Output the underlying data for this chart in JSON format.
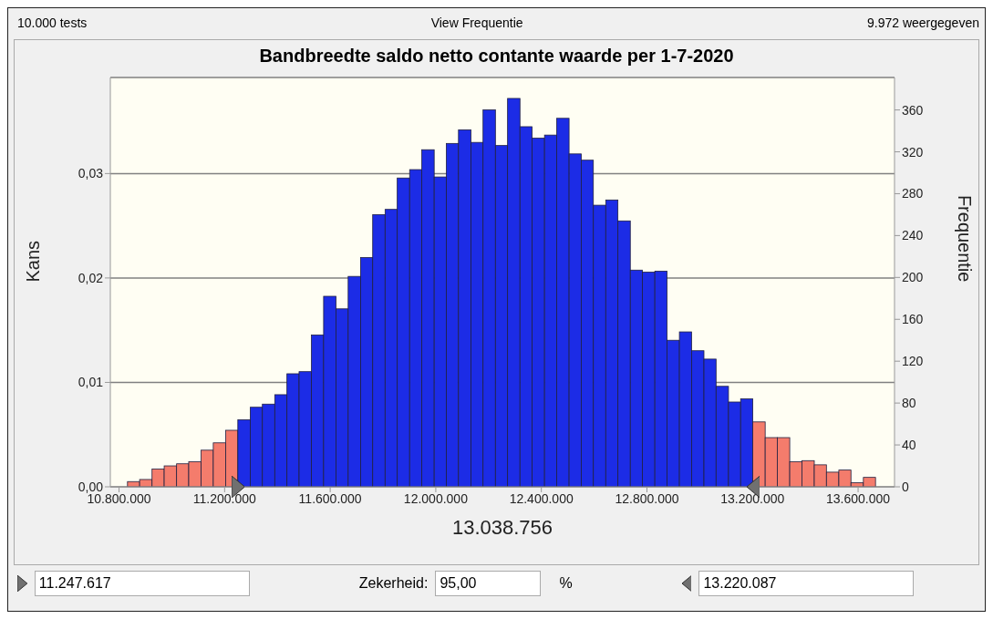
{
  "chart_data": {
    "type": "histogram",
    "title": "Bandbreedte saldo netto contante waarde per 1-7-2020",
    "subtitle": "View Frequentie",
    "xlabel": "13.038.756",
    "ylabel": "Kans",
    "y2label": "Frequentie",
    "annotations": [
      "10.000 tests",
      "9.972 weergegeven",
      "11.247.617",
      "Zekerheid:",
      "95,00",
      "%",
      "13.220.087"
    ],
    "bins": [
      10832000,
      10878000,
      10925000,
      10971000,
      11018000,
      11064000,
      11111000,
      11157000,
      11204000,
      11250000,
      11297000,
      11343000,
      11390000,
      11436000,
      11482000,
      11529000,
      11575000,
      11622000,
      11668000,
      11715000,
      11761000,
      11808000,
      11854000,
      11901000,
      11947000,
      11994000,
      12040000,
      12086000,
      12133000,
      12179000,
      12226000,
      12272000,
      12319000,
      12365000,
      12412000,
      12458000,
      12505000,
      12551000,
      12597000,
      12644000,
      12690000,
      12737000,
      12783000,
      12830000,
      12876000,
      12923000,
      12969000,
      13016000,
      13062000,
      13109000,
      13155000,
      13201000,
      13248000,
      13294000,
      13341000,
      13387000,
      13434000,
      13480000,
      13527000,
      13573000,
      13620000,
      13666000
    ],
    "series": [
      {
        "axis": "y2",
        "values": [
          5,
          7,
          17,
          20,
          22,
          24,
          35,
          42,
          54,
          64,
          76,
          79,
          88,
          108,
          110,
          145,
          182,
          170,
          201,
          219,
          260,
          265,
          295,
          303,
          322,
          296,
          328,
          341,
          329,
          360,
          326,
          371,
          344,
          333,
          336,
          352,
          318,
          312,
          269,
          274,
          254,
          207,
          205,
          206,
          140,
          148,
          130,
          122,
          96,
          81,
          84,
          62,
          47,
          47,
          24,
          25,
          21,
          14,
          16,
          4,
          9
        ],
        "colors": [
          "#f47c6c",
          "#f47c6c",
          "#f47c6c",
          "#f47c6c",
          "#f47c6c",
          "#f47c6c",
          "#f47c6c",
          "#f47c6c",
          "#f47c6c",
          "#1c2ce6",
          "#1c2ce6",
          "#1c2ce6",
          "#1c2ce6",
          "#1c2ce6",
          "#1c2ce6",
          "#1c2ce6",
          "#1c2ce6",
          "#1c2ce6",
          "#1c2ce6",
          "#1c2ce6",
          "#1c2ce6",
          "#1c2ce6",
          "#1c2ce6",
          "#1c2ce6",
          "#1c2ce6",
          "#1c2ce6",
          "#1c2ce6",
          "#1c2ce6",
          "#1c2ce6",
          "#1c2ce6",
          "#1c2ce6",
          "#1c2ce6",
          "#1c2ce6",
          "#1c2ce6",
          "#1c2ce6",
          "#1c2ce6",
          "#1c2ce6",
          "#1c2ce6",
          "#1c2ce6",
          "#1c2ce6",
          "#1c2ce6",
          "#1c2ce6",
          "#1c2ce6",
          "#1c2ce6",
          "#1c2ce6",
          "#1c2ce6",
          "#1c2ce6",
          "#1c2ce6",
          "#1c2ce6",
          "#1c2ce6",
          "#1c2ce6",
          "#f47c6c",
          "#f47c6c",
          "#f47c6c",
          "#f47c6c",
          "#f47c6c",
          "#f47c6c",
          "#f47c6c",
          "#f47c6c",
          "#f47c6c",
          "#f47c6c"
        ]
      }
    ],
    "xlim": [
      10767000,
      13738000
    ],
    "xticks": [
      {
        "value": 10800000,
        "label": "10.800.000"
      },
      {
        "value": 11200000,
        "label": "11.200.000"
      },
      {
        "value": 11600000,
        "label": "11.600.000"
      },
      {
        "value": 12000000,
        "label": "12.000.000"
      },
      {
        "value": 12400000,
        "label": "12.400.000"
      },
      {
        "value": 12800000,
        "label": "12.800.000"
      },
      {
        "value": 13200000,
        "label": "13.200.000"
      },
      {
        "value": 13600000,
        "label": "13.600.000"
      }
    ],
    "ylim": [
      0,
      0.0392
    ],
    "yticks": [
      {
        "value": 0,
        "label": "0,00"
      },
      {
        "value": 0.01,
        "label": "0,01"
      },
      {
        "value": 0.02,
        "label": "0,02"
      },
      {
        "value": 0.03,
        "label": "0,03"
      }
    ],
    "y2lim": [
      0,
      391
    ],
    "y2ticks": [
      0,
      40,
      80,
      120,
      160,
      200,
      240,
      280,
      320,
      360
    ],
    "grid": "y"
  }
}
